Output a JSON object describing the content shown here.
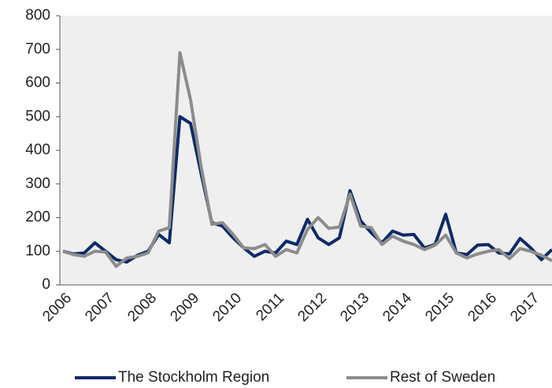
{
  "chart_data": {
    "type": "line",
    "categories": [
      "2006",
      null,
      null,
      null,
      "2007",
      null,
      null,
      null,
      "2008",
      null,
      null,
      null,
      "2009",
      null,
      null,
      null,
      "2010",
      null,
      null,
      null,
      "2011",
      null,
      null,
      null,
      "2012",
      null,
      null,
      null,
      "2013",
      null,
      null,
      null,
      "2014",
      null,
      null,
      null,
      "2015",
      null,
      null,
      null,
      "2016",
      null,
      null,
      null,
      "2017",
      null,
      null
    ],
    "series": [
      {
        "name": "The Stockholm Region",
        "color": "#0d2a6b",
        "values": [
          100,
          92,
          95,
          125,
          100,
          75,
          68,
          88,
          100,
          150,
          125,
          500,
          480,
          330,
          185,
          175,
          140,
          110,
          85,
          100,
          95,
          130,
          120,
          195,
          140,
          120,
          140,
          280,
          190,
          155,
          125,
          160,
          148,
          150,
          110,
          120,
          210,
          95,
          90,
          118,
          120,
          95,
          92,
          138,
          110,
          75,
          105
        ]
      },
      {
        "name": "Rest of Sweden",
        "color": "#8c8c8c",
        "values": [
          100,
          90,
          85,
          100,
          98,
          55,
          80,
          85,
          95,
          160,
          170,
          690,
          550,
          350,
          180,
          185,
          150,
          110,
          108,
          120,
          85,
          105,
          95,
          165,
          200,
          168,
          172,
          270,
          175,
          170,
          120,
          145,
          130,
          120,
          105,
          118,
          148,
          95,
          80,
          92,
          100,
          105,
          78,
          108,
          100,
          88,
          72
        ]
      }
    ],
    "ylim": [
      0,
      800
    ],
    "yticks": [
      0,
      100,
      200,
      300,
      400,
      500,
      600,
      700,
      800
    ],
    "legend": "bottom"
  }
}
